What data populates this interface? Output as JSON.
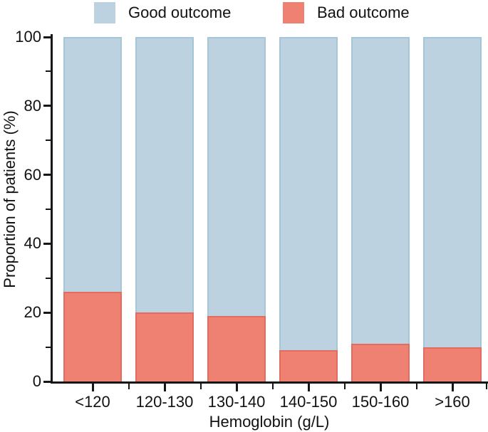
{
  "chart_data": {
    "type": "bar",
    "stacked": true,
    "percent_scale": true,
    "title": "",
    "xlabel": "Hemoglobin (g/L)",
    "ylabel": "Proportion of patients (%)",
    "categories": [
      "<120",
      "120-130",
      "130-140",
      "140-150",
      "150-160",
      ">160"
    ],
    "series": [
      {
        "name": "Good outcome",
        "color": "#bdd2e0",
        "edge_color": "#a6c6d8",
        "values": [
          74,
          80,
          81,
          91,
          89,
          90
        ]
      },
      {
        "name": "Bad outcome",
        "color": "#ee8172",
        "edge_color": "#e26c5f",
        "values": [
          26,
          20,
          19,
          9,
          11,
          10
        ]
      }
    ],
    "ylim": [
      0,
      100
    ],
    "y_major_ticks": [
      0,
      20,
      40,
      60,
      80,
      100
    ],
    "y_minor_ticks": [
      10,
      30,
      50,
      70,
      90
    ],
    "grid": false,
    "legend_position": "top"
  },
  "legend": {
    "items": [
      {
        "label": "Good outcome",
        "color": "#bdd2e0"
      },
      {
        "label": "Bad outcome",
        "color": "#ee8172"
      }
    ]
  },
  "axis_color": "#161616"
}
